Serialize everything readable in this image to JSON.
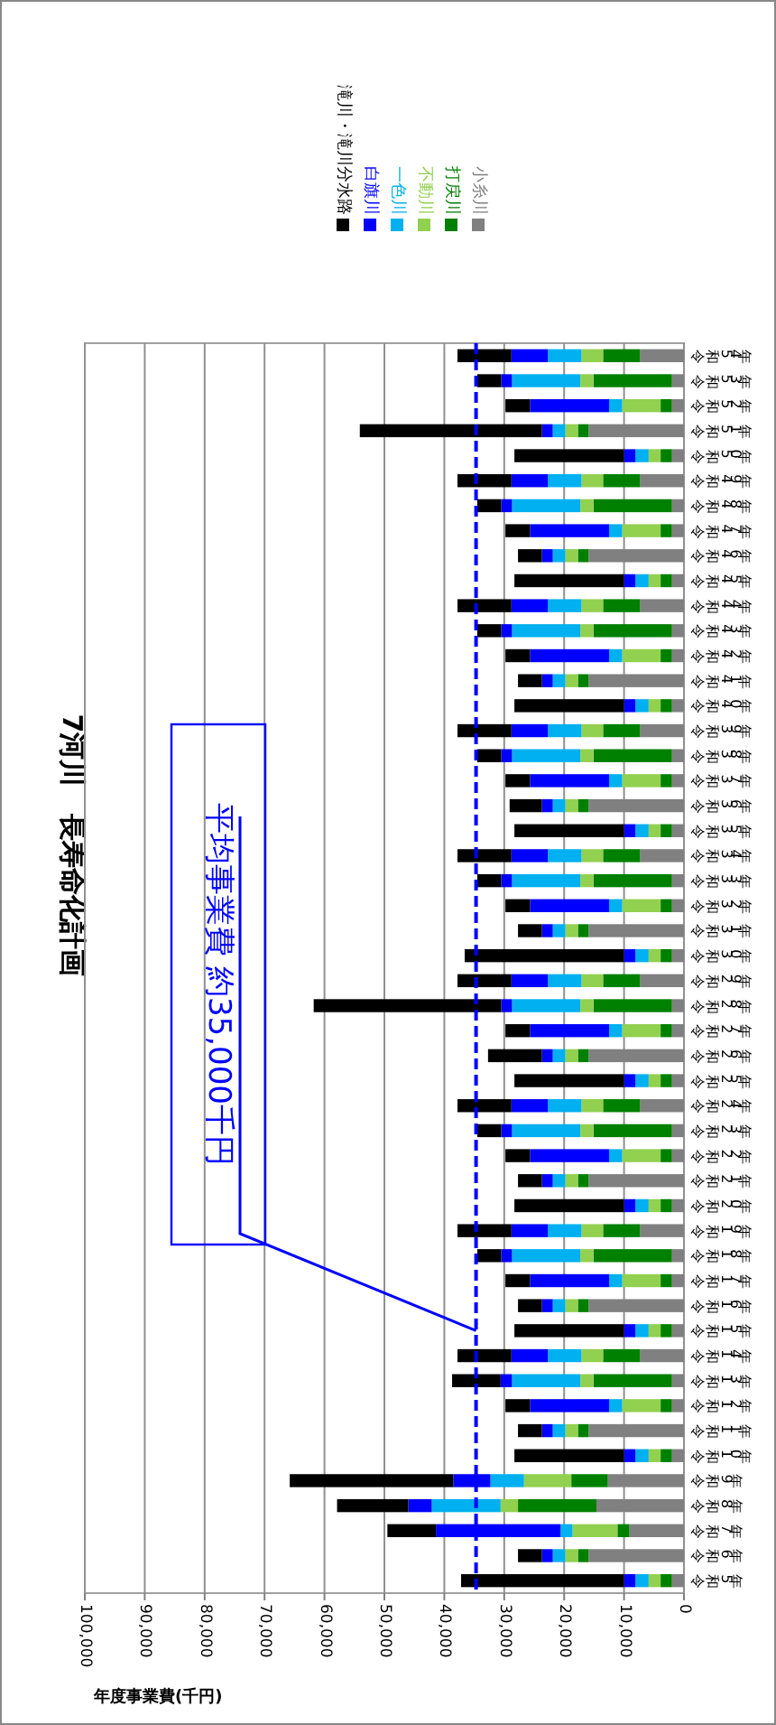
{
  "chart_data": {
    "type": "bar",
    "title": "7河川　長寿命化計画",
    "xlabel": "年度事業費(千円)",
    "orientation": "horizontal",
    "stacked": true,
    "grid": "x",
    "legend": "top",
    "xlim": [
      100000,
      0
    ],
    "xticks": [
      {
        "value": 100000,
        "label": "100,000"
      },
      {
        "value": 90000,
        "label": "90,000"
      },
      {
        "value": 80000,
        "label": "80,000"
      },
      {
        "value": 70000,
        "label": "70,000"
      },
      {
        "value": 60000,
        "label": "60,000"
      },
      {
        "value": 50000,
        "label": "50,000"
      },
      {
        "value": 40000,
        "label": "40,000"
      },
      {
        "value": 30000,
        "label": "30,000"
      },
      {
        "value": 20000,
        "label": "20,000"
      },
      {
        "value": 10000,
        "label": "10,000"
      },
      0
    ],
    "categories": [
      "令和54年",
      "令和53年",
      "令和52年",
      "令和51年",
      "令和50年",
      "令和49年",
      "令和48年",
      "令和47年",
      "令和46年",
      "令和45年",
      "令和44年",
      "令和43年",
      "令和42年",
      "令和41年",
      "令和40年",
      "令和39年",
      "令和38年",
      "令和37年",
      "令和36年",
      "令和35年",
      "令和34年",
      "令和33年",
      "令和32年",
      "令和31年",
      "令和30年",
      "令和29年",
      "令和28年",
      "令和27年",
      "令和26年",
      "令和25年",
      "令和24年",
      "令和23年",
      "令和22年",
      "令和21年",
      "令和20年",
      "令和19年",
      "令和18年",
      "令和17年",
      "令和16年",
      "令和15年",
      "令和14年",
      "令和13年",
      "令和12年",
      "令和11年",
      "令和10年",
      "令和9年",
      "令和8年",
      "令和7年",
      "令和6年",
      "令和5年"
    ],
    "series": [
      {
        "name": "小糸川",
        "color": "#808080",
        "values": [
          7300,
          2000,
          2000,
          15900,
          2000,
          7300,
          2000,
          2000,
          15900,
          2000,
          7300,
          2000,
          2000,
          15900,
          2000,
          7300,
          2000,
          2000,
          15900,
          2000,
          7300,
          2000,
          2000,
          15900,
          2000,
          7300,
          2000,
          2000,
          15900,
          2000,
          7300,
          2000,
          2000,
          15900,
          2000,
          7300,
          2000,
          2000,
          15900,
          2000,
          7300,
          2000,
          2000,
          15900,
          2000,
          12700,
          14600,
          9100,
          15900,
          2000
        ]
      },
      {
        "name": "打戻川",
        "color": "#008000",
        "values": [
          6200,
          13100,
          1900,
          1800,
          1900,
          6200,
          13100,
          1900,
          1800,
          1900,
          6200,
          13100,
          1900,
          1800,
          1900,
          6200,
          13100,
          1900,
          1800,
          1900,
          6200,
          13100,
          1900,
          1800,
          1900,
          6200,
          13100,
          1900,
          1800,
          1900,
          6200,
          13100,
          1900,
          1800,
          1900,
          6200,
          13100,
          1900,
          1800,
          1900,
          6200,
          13100,
          1900,
          1800,
          1900,
          6100,
          13100,
          2000,
          1800,
          1900
        ]
      },
      {
        "name": "不動川",
        "color": "#92d050",
        "values": [
          3600,
          2200,
          6400,
          2100,
          2000,
          3600,
          2200,
          6400,
          2100,
          2000,
          3600,
          2200,
          6400,
          2100,
          2000,
          3600,
          2200,
          6400,
          2100,
          2000,
          3600,
          2200,
          6400,
          2100,
          2000,
          3600,
          2200,
          6400,
          2100,
          2000,
          3600,
          2200,
          6400,
          2100,
          2000,
          3600,
          2200,
          6400,
          2100,
          2000,
          3600,
          2200,
          6400,
          2100,
          2000,
          7900,
          2900,
          7500,
          2100,
          2000
        ]
      },
      {
        "name": "一色川",
        "color": "#00b0f0",
        "values": [
          5600,
          11400,
          2200,
          2100,
          2200,
          5600,
          11400,
          2200,
          2100,
          2200,
          5600,
          11400,
          2200,
          2100,
          2200,
          5600,
          11400,
          2200,
          2100,
          2200,
          5600,
          11400,
          2200,
          2100,
          2200,
          5600,
          11400,
          2200,
          2100,
          2200,
          5600,
          11400,
          2200,
          2100,
          2200,
          5600,
          11400,
          2200,
          2100,
          2200,
          5600,
          11400,
          2200,
          2100,
          2200,
          5600,
          11500,
          2000,
          2100,
          2200
        ]
      },
      {
        "name": "白旗川",
        "color": "#0000ff",
        "values": [
          6100,
          1800,
          13200,
          1800,
          1900,
          6100,
          1800,
          13200,
          1800,
          1900,
          6100,
          1800,
          13200,
          1800,
          1900,
          6100,
          1800,
          13200,
          1800,
          1900,
          6100,
          1800,
          13200,
          1800,
          1900,
          6100,
          1800,
          13200,
          1800,
          1900,
          6100,
          1800,
          13200,
          1800,
          1900,
          6100,
          1800,
          13200,
          1800,
          1900,
          6100,
          1900,
          13200,
          1800,
          1900,
          6200,
          3900,
          20800,
          1800,
          1900
        ]
      },
      {
        "name": "滝川・滝川分水路",
        "color": "#000000",
        "values": [
          9000,
          4000,
          4100,
          30400,
          18300,
          9000,
          4000,
          4100,
          4000,
          18300,
          9000,
          4000,
          4100,
          4000,
          18300,
          9000,
          4000,
          4100,
          5400,
          18300,
          9000,
          4000,
          4100,
          4000,
          26600,
          9000,
          31300,
          4100,
          9000,
          18300,
          9000,
          4000,
          4100,
          4000,
          18300,
          9000,
          4000,
          4100,
          4000,
          18300,
          9000,
          8100,
          4100,
          4000,
          18300,
          27300,
          11900,
          8100,
          4000,
          27200
        ]
      }
    ],
    "ref_lines": [
      {
        "axis": "x",
        "value": 34700,
        "color": "#0000ff",
        "line_style": "dashed"
      }
    ],
    "annotations": [
      {
        "text": "平均事業費 約35,000千円",
        "x": 34700,
        "y": "令和15年"
      }
    ]
  }
}
